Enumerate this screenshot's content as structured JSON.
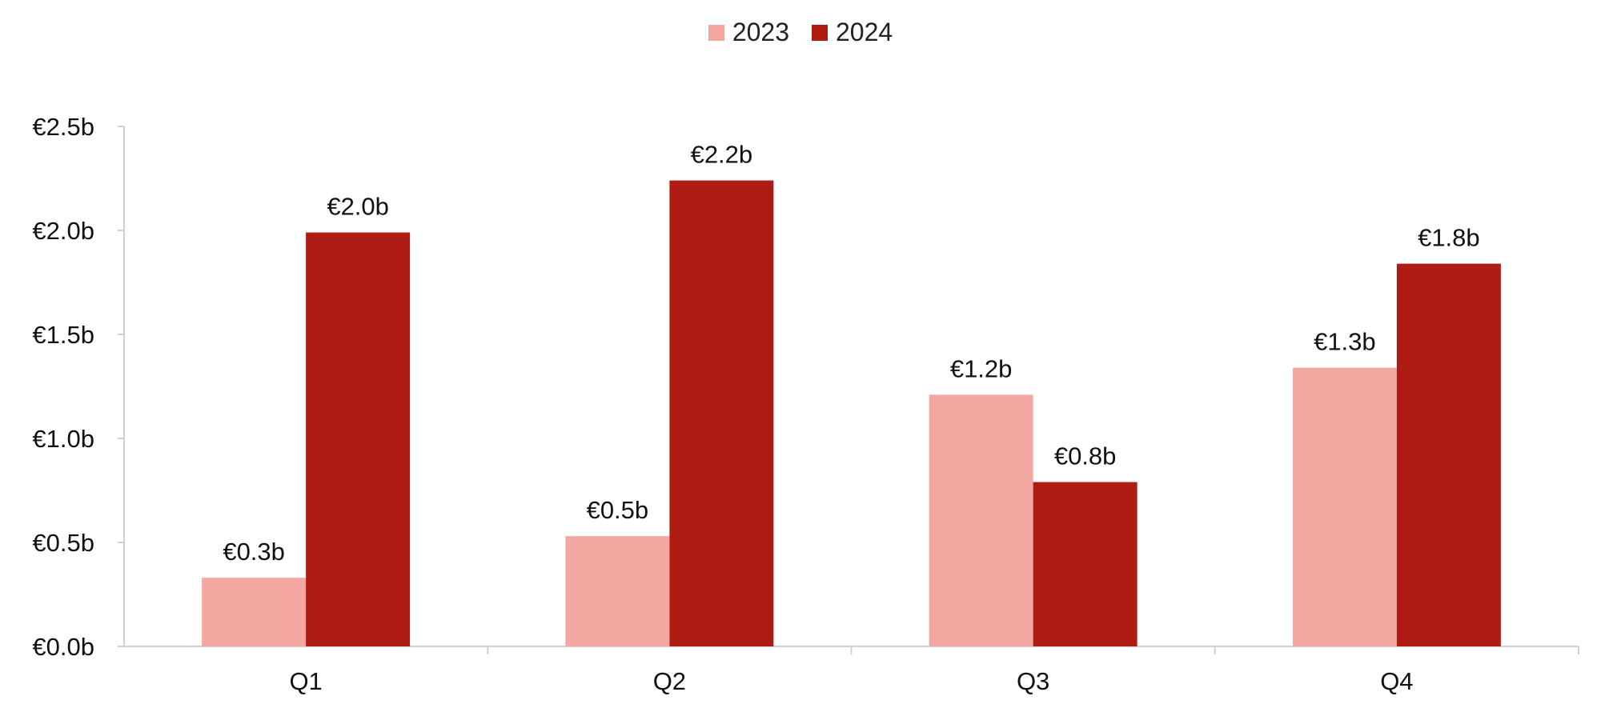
{
  "chart_data": {
    "type": "bar",
    "categories": [
      "Q1",
      "Q2",
      "Q3",
      "Q4"
    ],
    "series": [
      {
        "name": "2023",
        "color": "#f4a7a1",
        "values": [
          0.33,
          0.53,
          1.21,
          1.34
        ],
        "labels": [
          "€0.3b",
          "€0.5b",
          "€1.2b",
          "€1.3b"
        ]
      },
      {
        "name": "2024",
        "color": "#ae1b12",
        "values": [
          1.99,
          2.24,
          0.79,
          1.84
        ],
        "labels": [
          "€2.0b",
          "€2.2b",
          "€0.8b",
          "€1.8b"
        ]
      }
    ],
    "yticks": [
      "€0.0b",
      "€0.5b",
      "€1.0b",
      "€1.5b",
      "€2.0b",
      "€2.5b"
    ],
    "ylim": [
      0,
      2.5
    ],
    "title": "",
    "xlabel": "",
    "ylabel": "",
    "legend_position": "top-center",
    "grid": false
  }
}
